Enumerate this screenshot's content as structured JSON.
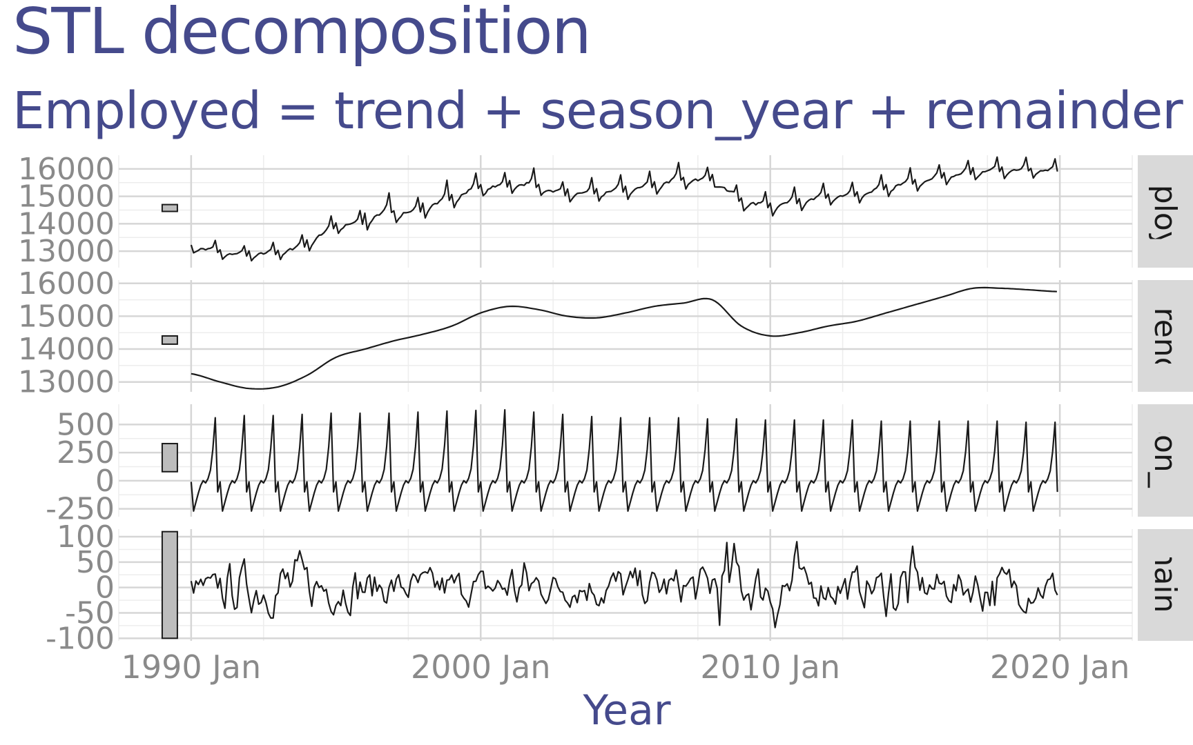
{
  "title": "STL decomposition",
  "subtitle": "Employed = trend + season_year + remainder",
  "chart_data": {
    "type": "line",
    "title": "STL decomposition",
    "subtitle": "Employed = trend + season_year + remainder",
    "xlabel": "Year",
    "x_start": "1990 Jan",
    "x_end": "2019 Dec",
    "xlim": [
      1987.5,
      2022.5
    ],
    "x_ticks": [
      1990,
      2000,
      2010,
      2020
    ],
    "x_tick_labels": [
      "1990 Jan",
      "2000 Jan",
      "2010 Jan",
      "2020 Jan"
    ],
    "grid": true,
    "series_color": "#1a1a1a",
    "panels": [
      {
        "strip": "Employed",
        "ylim": [
          12400,
          16500
        ],
        "y_ticks": [
          13000,
          14000,
          15000,
          16000
        ],
        "y_tick_labels": [
          "13000",
          "14000",
          "15000",
          "16000"
        ],
        "scale_bar_range": [
          14450,
          14700
        ],
        "trend_years": [
          1990,
          1991,
          1992,
          1993,
          1994,
          1995,
          1996,
          1997,
          1998,
          1999,
          2000,
          2001,
          2002,
          2003,
          2004,
          2005,
          2006,
          2007,
          2008,
          2009,
          2010,
          2011,
          2012,
          2013,
          2014,
          2015,
          2016,
          2017,
          2018,
          2019
        ],
        "yearly_low": [
          12900,
          12700,
          12600,
          12650,
          12950,
          13600,
          13700,
          14000,
          14100,
          14500,
          14950,
          15050,
          15000,
          14750,
          14750,
          14850,
          15000,
          15250,
          15350,
          14450,
          14250,
          14450,
          14650,
          14700,
          14950,
          15150,
          15400,
          15550,
          15600,
          15650
        ],
        "yearly_peak": [
          13550,
          13300,
          13300,
          13350,
          13750,
          14400,
          14900,
          14900,
          15250,
          15500,
          15800,
          16050,
          15750,
          15650,
          15700,
          15800,
          16000,
          16000,
          16150,
          15350,
          15200,
          15300,
          15450,
          15550,
          15850,
          15950,
          16200,
          16400,
          16400,
          16350
        ]
      },
      {
        "strip": "trend",
        "ylim": [
          12700,
          16100
        ],
        "y_ticks": [
          13000,
          14000,
          15000,
          16000
        ],
        "y_tick_labels": [
          "13000",
          "14000",
          "15000",
          "16000"
        ],
        "scale_bar_range": [
          14150,
          14400
        ],
        "x": [
          1990,
          1991,
          1992,
          1993,
          1994,
          1995,
          1996,
          1997,
          1998,
          1999,
          2000,
          2001,
          2002,
          2003,
          2004,
          2005,
          2006,
          2007,
          2008,
          2009,
          2010,
          2011,
          2012,
          2013,
          2014,
          2015,
          2016,
          2017,
          2018,
          2019,
          2019.9
        ],
        "values": [
          13250,
          13000,
          12800,
          12850,
          13200,
          13750,
          14000,
          14250,
          14450,
          14700,
          15100,
          15300,
          15200,
          15000,
          14950,
          15100,
          15300,
          15400,
          15500,
          14700,
          14400,
          14500,
          14700,
          14850,
          15100,
          15350,
          15600,
          15850,
          15850,
          15800,
          15750
        ]
      },
      {
        "strip": "season_year",
        "ylim": [
          -320,
          680
        ],
        "y_ticks": [
          -250,
          0,
          250,
          500
        ],
        "y_tick_labels": [
          "-250",
          "0",
          "250",
          "500"
        ],
        "scale_bar_range": [
          80,
          330
        ],
        "monthly_pattern": [
          -10,
          -270,
          -190,
          -110,
          -40,
          0,
          -20,
          20,
          100,
          300,
          600,
          -100
        ],
        "yearly_peak": [
          560,
          580,
          580,
          590,
          600,
          600,
          600,
          610,
          620,
          625,
          630,
          610,
          590,
          570,
          560,
          560,
          560,
          550,
          550,
          540,
          540,
          540,
          540,
          530,
          530,
          530,
          530,
          530,
          520,
          520
        ]
      },
      {
        "strip": "remainder",
        "ylim": [
          -105,
          115
        ],
        "y_ticks": [
          -100,
          -50,
          0,
          50,
          100
        ],
        "y_tick_labels": [
          "-100",
          "-50",
          "0",
          "50",
          "100"
        ],
        "scale_bar_range": [
          -100,
          110
        ],
        "yearly_envelope": [
          30,
          60,
          60,
          75,
          55,
          55,
          40,
          40,
          40,
          40,
          40,
          75,
          40,
          40,
          50,
          45,
          45,
          50,
          110,
          60,
          100,
          40,
          45,
          45,
          90,
          40,
          40,
          60,
          50,
          40
        ]
      }
    ]
  }
}
